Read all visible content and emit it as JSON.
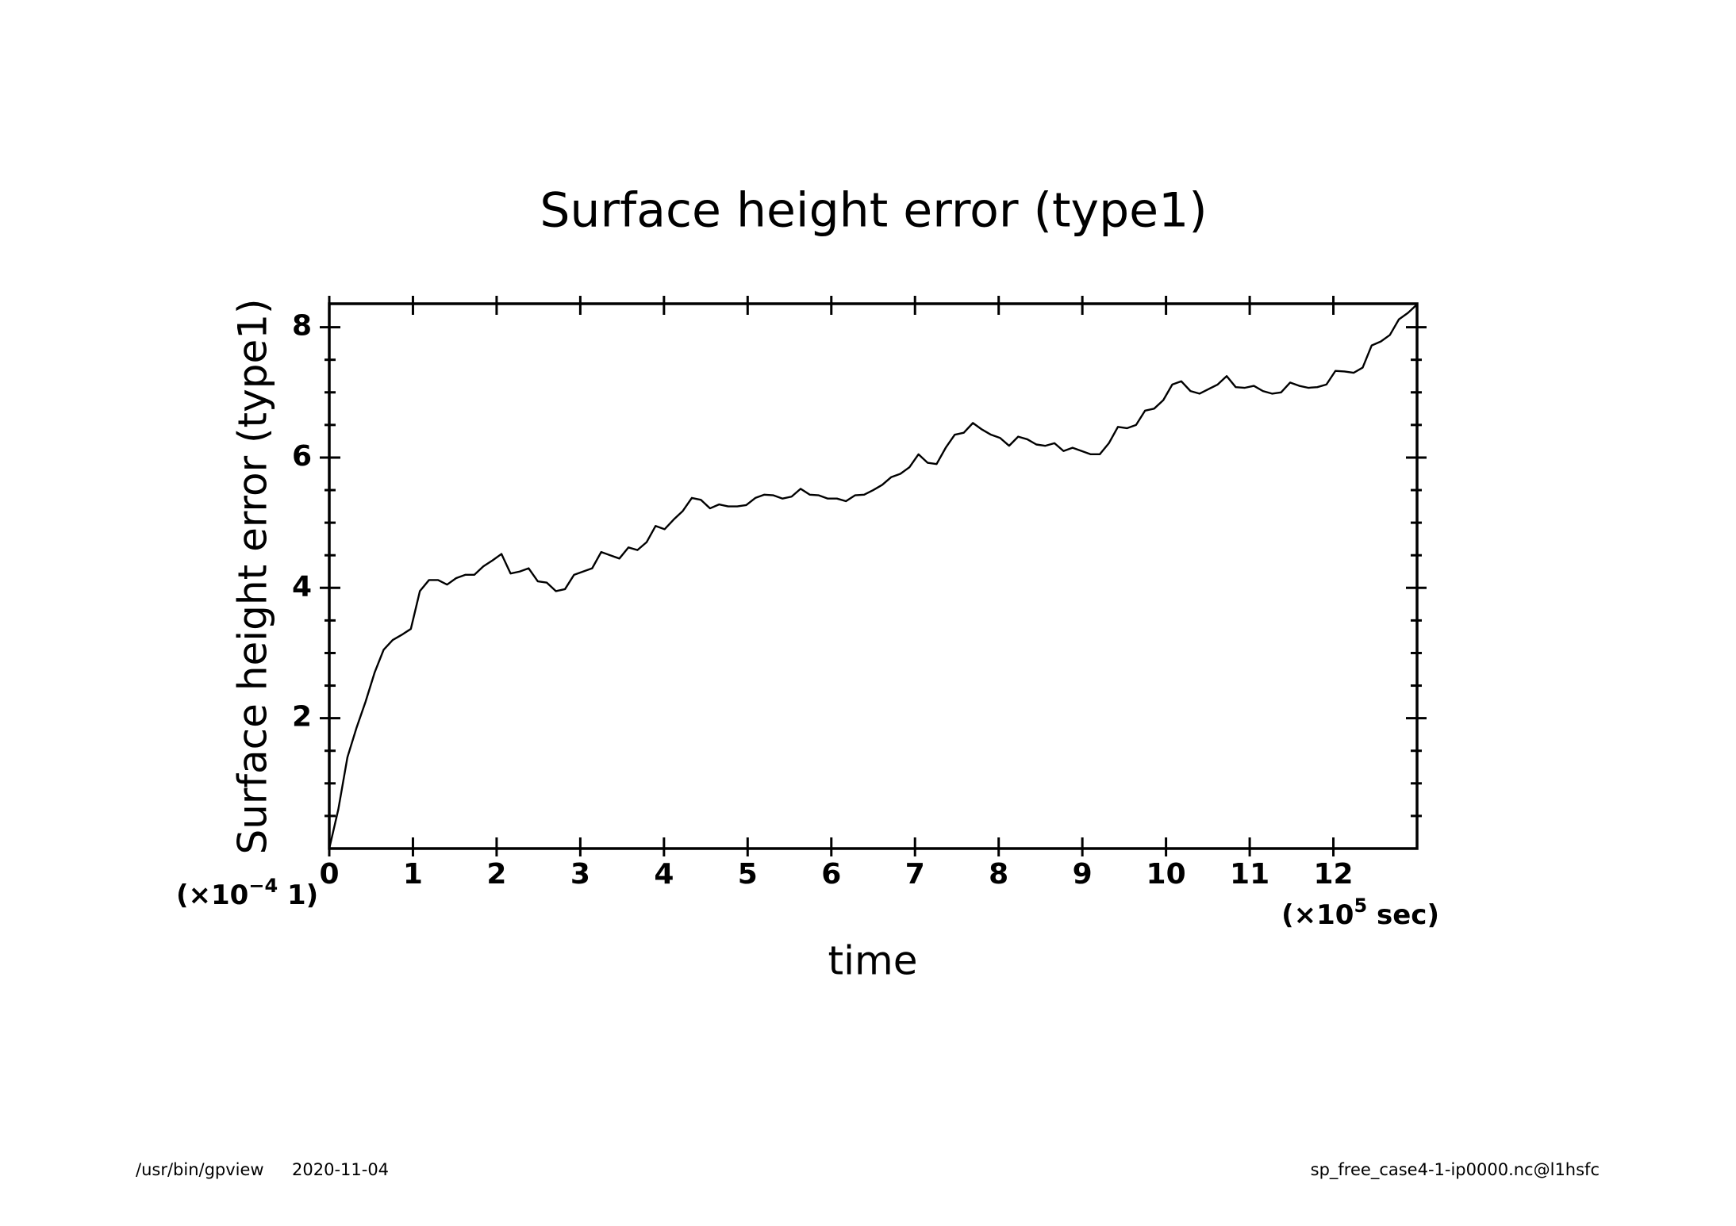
{
  "chart_data": {
    "type": "line",
    "title": "Surface height error (type1)",
    "x_label": "time",
    "y_label": "Surface height error (type1)",
    "x_unit": {
      "base": "(×10",
      "exponent": "5",
      "rest": " sec)"
    },
    "y_unit": {
      "base": "(×10",
      "exponent": "−4",
      "rest": " 1)"
    },
    "xlim": [
      0,
      13
    ],
    "ylim": [
      0,
      8.36
    ],
    "xticks": [
      0,
      1,
      2,
      3,
      4,
      5,
      6,
      7,
      8,
      9,
      10,
      11,
      12
    ],
    "yticks": [
      2,
      4,
      6,
      8
    ],
    "yminorticks": [
      0.5,
      1,
      1.5,
      2.5,
      3,
      3.5,
      4.5,
      5,
      5.5,
      6.5,
      7,
      7.5
    ],
    "series": [
      {
        "color": "#000000",
        "x": [
          0,
          0.108,
          0.217,
          0.325,
          0.433,
          0.542,
          0.65,
          0.758,
          0.867,
          0.975,
          1.083,
          1.192,
          1.3,
          1.408,
          1.517,
          1.625,
          1.733,
          1.842,
          1.95,
          2.058,
          2.167,
          2.275,
          2.383,
          2.492,
          2.6,
          2.708,
          2.817,
          2.925,
          3.033,
          3.142,
          3.25,
          3.358,
          3.467,
          3.575,
          3.683,
          3.792,
          3.9,
          4.008,
          4.117,
          4.225,
          4.333,
          4.442,
          4.55,
          4.658,
          4.767,
          4.875,
          4.983,
          5.092,
          5.2,
          5.308,
          5.417,
          5.525,
          5.633,
          5.742,
          5.85,
          5.958,
          6.067,
          6.175,
          6.283,
          6.392,
          6.5,
          6.608,
          6.717,
          6.825,
          6.933,
          7.042,
          7.15,
          7.258,
          7.367,
          7.475,
          7.583,
          7.692,
          7.8,
          7.908,
          8.017,
          8.125,
          8.233,
          8.342,
          8.45,
          8.558,
          8.667,
          8.775,
          8.883,
          8.992,
          9.1,
          9.208,
          9.317,
          9.425,
          9.533,
          9.642,
          9.75,
          9.858,
          9.967,
          10.075,
          10.183,
          10.292,
          10.4,
          10.508,
          10.617,
          10.725,
          10.833,
          10.942,
          11.05,
          11.158,
          11.267,
          11.375,
          11.483,
          11.592,
          11.7,
          11.808,
          11.917,
          12.025,
          12.133,
          12.242,
          12.35,
          12.458,
          12.567,
          12.675,
          12.783,
          12.892,
          13
        ],
        "values": [
          0,
          0.6,
          1.4,
          1.85,
          2.25,
          2.7,
          3.05,
          3.2,
          3.28,
          3.37,
          3.95,
          4.12,
          4.12,
          4.05,
          4.15,
          4.2,
          4.2,
          4.33,
          4.42,
          4.52,
          4.22,
          4.25,
          4.3,
          4.1,
          4.08,
          3.95,
          3.98,
          4.2,
          4.25,
          4.3,
          4.55,
          4.5,
          4.45,
          4.62,
          4.58,
          4.7,
          4.95,
          4.9,
          5.05,
          5.18,
          5.38,
          5.35,
          5.22,
          5.28,
          5.25,
          5.25,
          5.27,
          5.38,
          5.43,
          5.42,
          5.37,
          5.4,
          5.52,
          5.43,
          5.42,
          5.37,
          5.37,
          5.33,
          5.42,
          5.43,
          5.5,
          5.58,
          5.7,
          5.75,
          5.85,
          6.05,
          5.92,
          5.9,
          6.15,
          6.35,
          6.38,
          6.53,
          6.43,
          6.35,
          6.3,
          6.18,
          6.32,
          6.28,
          6.2,
          6.18,
          6.22,
          6.1,
          6.15,
          6.1,
          6.05,
          6.05,
          6.22,
          6.47,
          6.45,
          6.5,
          6.72,
          6.75,
          6.88,
          7.12,
          7.17,
          7.02,
          6.98,
          7.05,
          7.12,
          7.25,
          7.08,
          7.07,
          7.1,
          7.02,
          6.98,
          7.0,
          7.15,
          7.1,
          7.07,
          7.08,
          7.12,
          7.33,
          7.32,
          7.3,
          7.38,
          7.72,
          7.78,
          7.88,
          8.12,
          8.22,
          8.35
        ]
      }
    ]
  },
  "footer": {
    "program": "/usr/bin/gpview",
    "date": "2020-11-04",
    "source": "sp_free_case4-1-ip0000.nc@l1hsfc"
  }
}
